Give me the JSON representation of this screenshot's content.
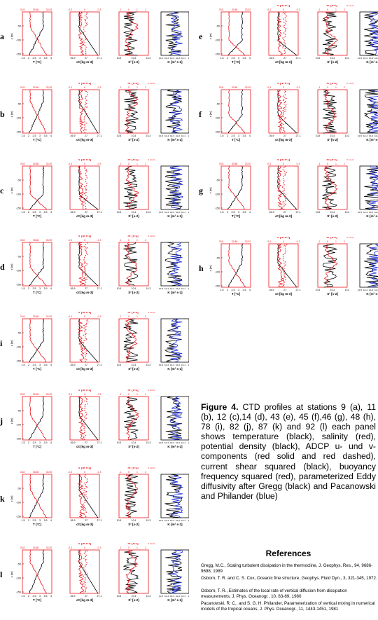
{
  "colors": {
    "temp": "#000000",
    "sal": "#e8141b",
    "u": "#e8141b",
    "v": "#e8141b",
    "shear": "#000000",
    "n2": "#e8141b",
    "k_gregg": "#000000",
    "k_pac": "#1c2fe0"
  },
  "panels": [
    {
      "letter": "a",
      "col": "left",
      "row": 0
    },
    {
      "letter": "b",
      "col": "left",
      "row": 1
    },
    {
      "letter": "c",
      "col": "left",
      "row": 2
    },
    {
      "letter": "d",
      "col": "left",
      "row": 3
    },
    {
      "letter": "i",
      "col": "left",
      "row": 4
    },
    {
      "letter": "j",
      "col": "left",
      "row": 5
    },
    {
      "letter": "k",
      "col": "left",
      "row": 6
    },
    {
      "letter": "l",
      "col": "left",
      "row": 7
    },
    {
      "letter": "e",
      "col": "right",
      "row": 0
    },
    {
      "letter": "f",
      "col": "right",
      "row": 1
    },
    {
      "letter": "g",
      "col": "right",
      "row": 2
    },
    {
      "letter": "h",
      "col": "right",
      "row": 3
    }
  ],
  "axis_labels": {
    "zlabel": "z [m]",
    "temp": "T [°C]",
    "sigma": "σt [kg m-3]",
    "shear": "S² [s-2]",
    "k": "K [m² s-1]",
    "v": "V [m s-1]",
    "n2": "N² [s-2]",
    "n2_scale": "x 10-4"
  },
  "ticks": {
    "z": [
      "-50",
      "-100",
      "-150"
    ],
    "temp_bottom": [
      "1.5",
      "2",
      "2.5",
      "3",
      "3.5",
      "4"
    ],
    "sal_top": [
      "33.8",
      "33.86",
      "33.92"
    ],
    "sigma_bottom": [
      "26.9",
      "27",
      "27.1"
    ],
    "v_top": [
      "-0.3",
      "0",
      "0.3"
    ],
    "shear_bottom": [
      "10-5",
      "10-4",
      "10-3"
    ],
    "n2_top": [
      "-1",
      "0",
      "1",
      "2"
    ],
    "k_bottom": [
      "10-5",
      "10-4",
      "10-3",
      "10-2",
      "10-1",
      "10"
    ]
  },
  "caption": {
    "label": "Figure 4.",
    "text": " CTD profiles at stations 9 (a), 11 (b), 12 (c),14 (d), 43 (e), 45 (f),46 (g), 48 (h), 78 (i), 82 (j), 87 (k) and 92 (l) each panel shows temperature (black), salinity (red), potential density (black), ADCP u- und v- components (red solid and red dashed), current shear squared (black), buoyancy frequency squared (red), parameterized Eddy diffusivity after Gregg (black) and Pacanowski and Philander (blue)"
  },
  "references": {
    "title": "References",
    "items": [
      "Gregg, M.C., Scaling turbulent dissipation in the thermocline, J. Geophys. Res., 94, 9686-9698, 1989",
      "Osborn, T. R. and C. S. Cox, Oceanic fine structure, Geophys. Fluid Dyn., 3, 321-345, 1972.",
      "Osborn, T. R., Estimates of the local rate of vertical diffusion from dissipation measurements, J. Phys. Oceanogr., 10, 83-89, 1980",
      "Pacanowski, R. C., and S. G. H. Philander, Parameterization of vertical mixing in numerical models of the tropical oceans, J. Phys. Oceanogr., 11, 1443-1451, 1981"
    ]
  }
}
